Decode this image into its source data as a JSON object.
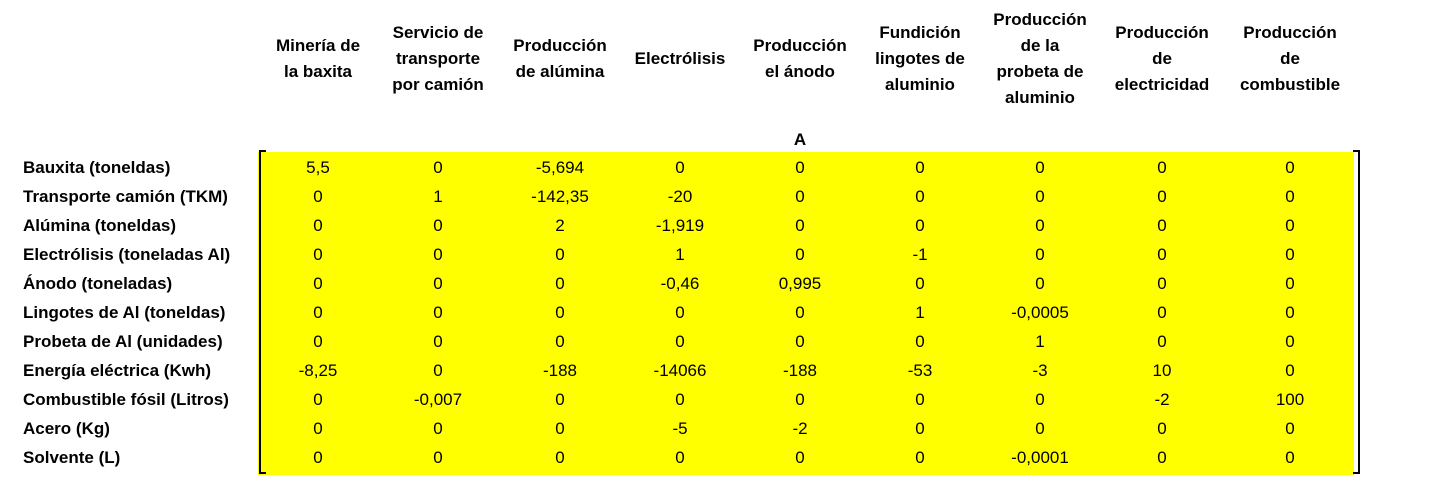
{
  "matrix_label": "A",
  "columns": [
    [
      "Minería de",
      "la baxita"
    ],
    [
      "Servicio de",
      "transporte",
      "por camión"
    ],
    [
      "Producción",
      "de alúmina"
    ],
    [
      "Electrólisis"
    ],
    [
      "Producción",
      "el ánodo"
    ],
    [
      "Fundición",
      "lingotes de",
      "aluminio"
    ],
    [
      "Producción",
      "de la",
      "probeta de",
      "aluminio"
    ],
    [
      "Producción",
      "de",
      "electricidad"
    ],
    [
      "Producción",
      "de",
      "combustible"
    ]
  ],
  "rows": [
    {
      "label": "Bauxita (toneldas)",
      "values": [
        "5,5",
        "0",
        "-5,694",
        "0",
        "0",
        "0",
        "0",
        "0",
        "0"
      ]
    },
    {
      "label": "Transporte camión (TKM)",
      "values": [
        "0",
        "1",
        "-142,35",
        "-20",
        "0",
        "0",
        "0",
        "0",
        "0"
      ]
    },
    {
      "label": "Alúmina (toneldas)",
      "values": [
        "0",
        "0",
        "2",
        "-1,919",
        "0",
        "0",
        "0",
        "0",
        "0"
      ]
    },
    {
      "label": "Electrólisis (toneladas Al)",
      "values": [
        "0",
        "0",
        "0",
        "1",
        "0",
        "-1",
        "0",
        "0",
        "0"
      ]
    },
    {
      "label": "Ánodo (toneladas)",
      "values": [
        "0",
        "0",
        "0",
        "-0,46",
        "0,995",
        "0",
        "0",
        "0",
        "0"
      ]
    },
    {
      "label": "Lingotes de Al (toneldas)",
      "values": [
        "0",
        "0",
        "0",
        "0",
        "0",
        "1",
        "-0,0005",
        "0",
        "0"
      ]
    },
    {
      "label": "Probeta de Al (unidades)",
      "values": [
        "0",
        "0",
        "0",
        "0",
        "0",
        "0",
        "1",
        "0",
        "0"
      ]
    },
    {
      "label": "Energía eléctrica (Kwh)",
      "values": [
        "-8,25",
        "0",
        "-188",
        "-14066",
        "-188",
        "-53",
        "-3",
        "10",
        "0"
      ]
    },
    {
      "label": "Combustible fósil (Litros)",
      "values": [
        "0",
        "-0,007",
        "0",
        "0",
        "0",
        "0",
        "0",
        "-2",
        "100"
      ]
    },
    {
      "label": "Acero (Kg)",
      "values": [
        "0",
        "0",
        "0",
        "-5",
        "-2",
        "0",
        "0",
        "0",
        "0"
      ]
    },
    {
      "label": "Solvente (L)",
      "values": [
        "0",
        "0",
        "0",
        "0",
        "0",
        "0",
        "-0,0001",
        "0",
        "0"
      ]
    }
  ]
}
